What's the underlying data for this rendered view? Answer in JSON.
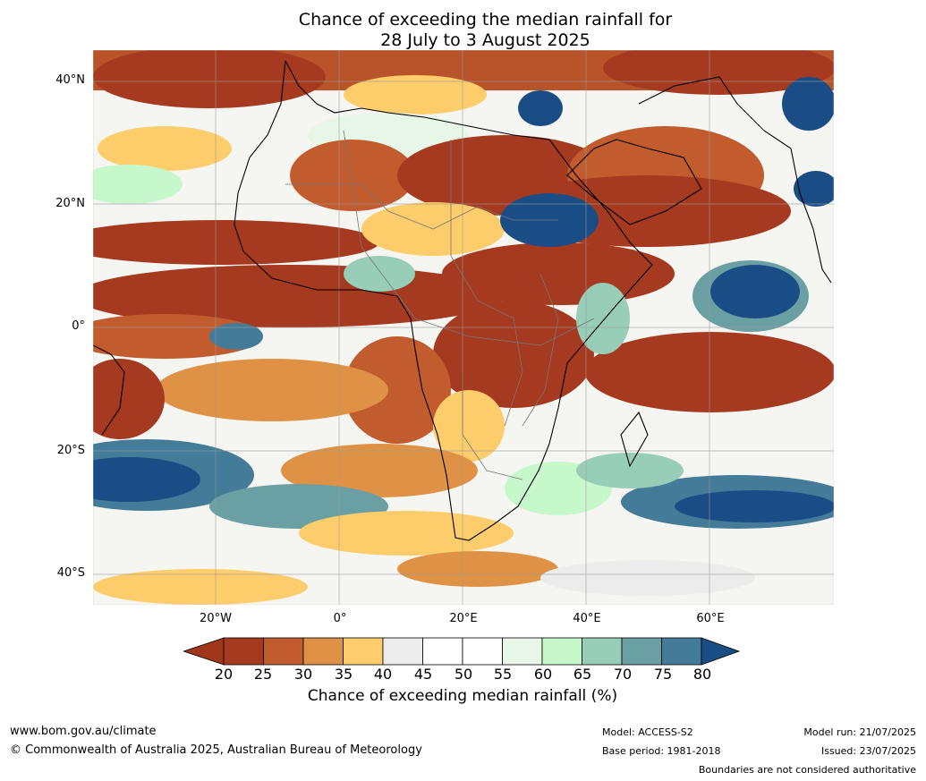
{
  "title_line1": "Chance of exceeding the median rainfall for",
  "title_line2": "28 July to 3 August 2025",
  "map": {
    "lat_labels": [
      "40°N",
      "20°N",
      "0°",
      "20°S",
      "40°S"
    ],
    "lon_labels": [
      "20°W",
      "0°",
      "20°E",
      "40°E",
      "60°E"
    ]
  },
  "colorbar": {
    "title": "Chance of exceeding median rainfall (%)",
    "ticks": [
      "20",
      "25",
      "30",
      "35",
      "40",
      "45",
      "50",
      "55",
      "60",
      "65",
      "70",
      "75",
      "80"
    ],
    "below_color": "#a1361d",
    "colors": [
      "#a53a20",
      "#c25c2e",
      "#df9246",
      "#fdcc6b",
      "#ececec",
      "#ffffff",
      "#ffffff",
      "#e8f6e8",
      "#c6f8cc",
      "#98cdb7",
      "#6aa0a4",
      "#437b98"
    ],
    "above_color": "#1a4d86"
  },
  "footer": {
    "website": "www.bom.gov.au/climate",
    "copyright": "© Commonwealth of Australia 2025, Australian Bureau of Meteorology",
    "model": "Model: ACCESS-S2",
    "base_period": "Base period: 1981-2018",
    "model_run": "Model run: 21/07/2025",
    "issued": "Issued: 23/07/2025",
    "disclaimer": "Boundaries are not considered authoritative"
  }
}
